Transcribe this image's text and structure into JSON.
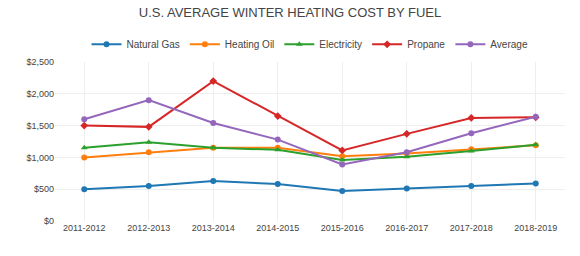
{
  "chart_data": {
    "type": "line",
    "title": "U.S. AVERAGE WINTER HEATING COST BY FUEL",
    "categories": [
      "2011-2012",
      "2012-2013",
      "2013-2014",
      "2014-2015",
      "2015-2016",
      "2016-2017",
      "2017-2018",
      "2018-2019"
    ],
    "series": [
      {
        "name": "Natural Gas",
        "marker": "circle",
        "values": [
          500,
          550,
          630,
          580,
          470,
          510,
          550,
          590
        ]
      },
      {
        "name": "Heating Oil",
        "marker": "circle",
        "values": [
          1000,
          1080,
          1150,
          1150,
          1020,
          1060,
          1130,
          1190
        ]
      },
      {
        "name": "Electricity",
        "marker": "triangle-up",
        "values": [
          1150,
          1240,
          1150,
          1120,
          960,
          1010,
          1100,
          1200
        ]
      },
      {
        "name": "Propane",
        "marker": "diamond",
        "values": [
          1500,
          1480,
          2200,
          1650,
          1110,
          1370,
          1620,
          1630
        ]
      },
      {
        "name": "Average",
        "marker": "circle",
        "values": [
          1600,
          1900,
          1540,
          1280,
          890,
          1080,
          1380,
          1640
        ]
      }
    ],
    "ylim": [
      0,
      2500
    ],
    "yticks": [
      {
        "value": 0,
        "label": "$0"
      },
      {
        "value": 500,
        "label": "$500"
      },
      {
        "value": 1000,
        "label": "$1,000"
      },
      {
        "value": 1500,
        "label": "$1,500"
      },
      {
        "value": 2000,
        "label": "$2,000"
      },
      {
        "value": 2500,
        "label": "$2,500"
      }
    ],
    "grid": true,
    "legend": "top"
  }
}
